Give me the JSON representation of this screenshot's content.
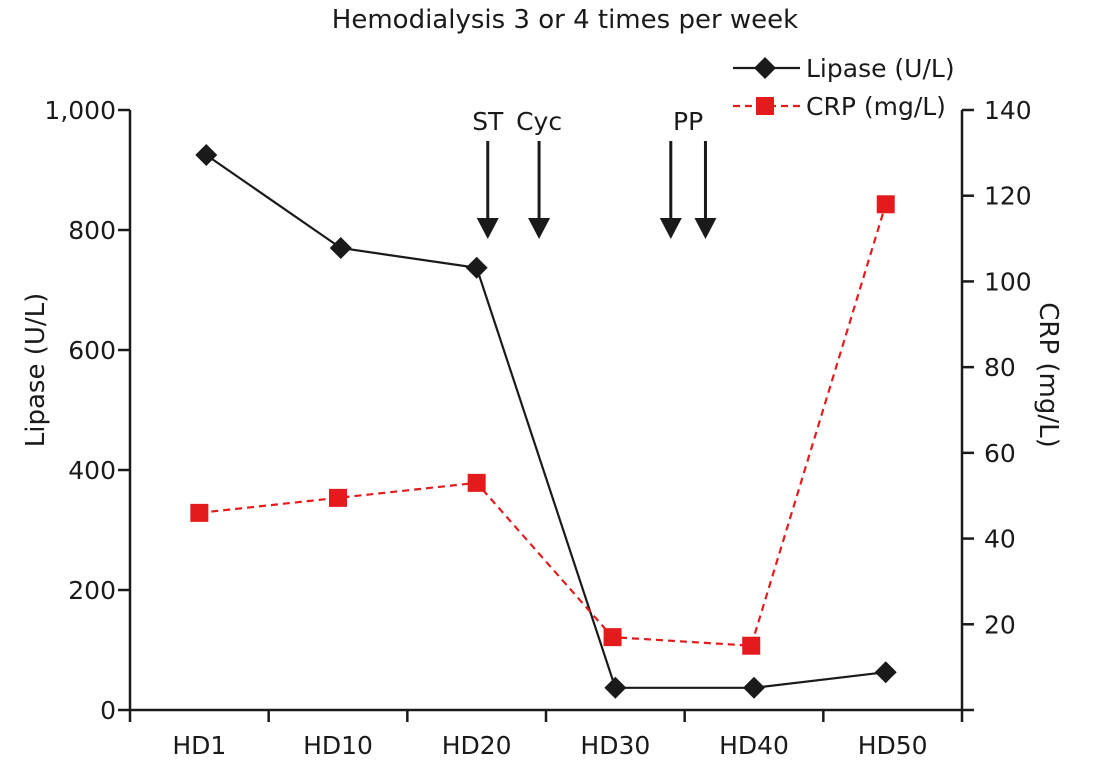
{
  "chart_data": {
    "type": "line",
    "title": "Hemodialysis 3 or 4 times per week",
    "categories": [
      "HD1",
      "HD10",
      "HD20",
      "HD30",
      "HD40",
      "HD50"
    ],
    "left_axis": {
      "label": "Lipase (U/L)",
      "ylim": [
        0,
        1000
      ],
      "ticks": [
        0,
        200,
        400,
        600,
        800,
        1000
      ],
      "tick_labels": [
        "0",
        "200",
        "400",
        "600",
        "800",
        "1,000"
      ]
    },
    "right_axis": {
      "label": "CRP (mg/L)",
      "ylim": [
        0,
        140
      ],
      "ticks": [
        20,
        40,
        60,
        80,
        100,
        120,
        140
      ],
      "tick_labels": [
        "20",
        "40",
        "60",
        "80",
        "100",
        "120",
        "140"
      ]
    },
    "series": [
      {
        "name": "Lipase (U/L)",
        "axis": "left",
        "marker": "diamond",
        "color": "#1a1a1a",
        "line_style": "solid",
        "points": [
          {
            "x": 1.05,
            "y": 925
          },
          {
            "x": 2.02,
            "y": 770
          },
          {
            "x": 3.0,
            "y": 737
          },
          {
            "x": 4.0,
            "y": 37
          },
          {
            "x": 5.0,
            "y": 37
          },
          {
            "x": 5.95,
            "y": 63
          }
        ]
      },
      {
        "name": "CRP (mg/L)",
        "axis": "right",
        "marker": "square",
        "color": "#e41a1c",
        "line_style": "dashed",
        "points": [
          {
            "x": 1.0,
            "y": 46
          },
          {
            "x": 2.0,
            "y": 49.5
          },
          {
            "x": 3.0,
            "y": 53
          },
          {
            "x": 3.98,
            "y": 17
          },
          {
            "x": 4.98,
            "y": 15
          },
          {
            "x": 5.95,
            "y": 118
          }
        ]
      }
    ],
    "annotations": [
      {
        "label": "ST",
        "arrows_x": [
          3.08
        ]
      },
      {
        "label": "Cyc",
        "arrows_x": [
          3.45
        ]
      },
      {
        "label": "PP",
        "arrows_x": [
          4.4,
          4.65
        ]
      }
    ],
    "legend": "top-right",
    "grid": false
  }
}
